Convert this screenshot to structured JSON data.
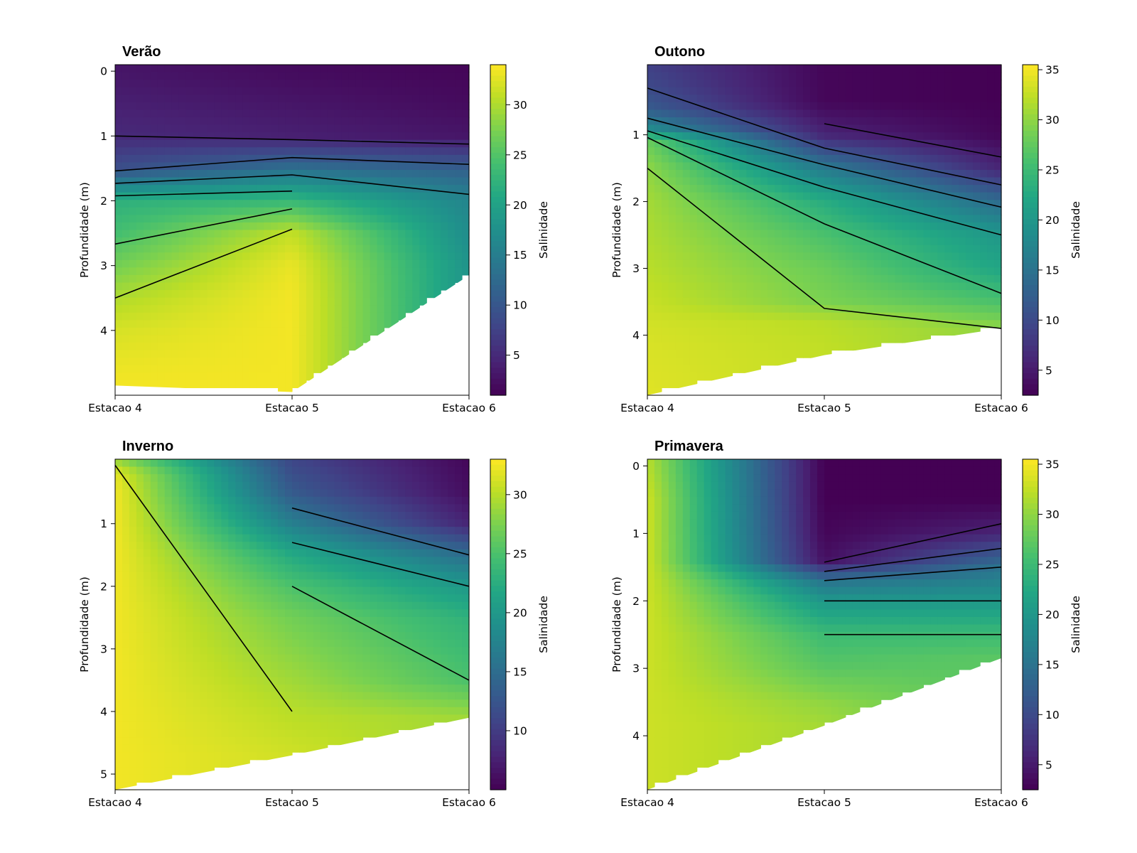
{
  "chart_data": [
    {
      "type": "heatmap",
      "title": "Verão",
      "xlabel": "",
      "ylabel": "Profundidade (m)",
      "x_tick_labels": [
        "Estacao 4",
        "Estacao 5",
        "Estacao 6"
      ],
      "ylim": [
        5.0,
        -0.1
      ],
      "y_ticks": [
        0,
        1,
        2,
        3,
        4
      ],
      "bottom_depth": [
        4.85,
        4.95,
        3.15
      ],
      "colorbar": {
        "label": "Salinidade",
        "min": 1.0,
        "max": 34.0,
        "ticks": [
          5,
          10,
          15,
          20,
          25,
          30
        ],
        "colormap": "viridis"
      },
      "salinity_profiles": [
        {
          "station": "Estacao 4",
          "depth": [
            0,
            0.5,
            1.0,
            1.5,
            2.0,
            2.5,
            3.0,
            3.5,
            4.0,
            4.5,
            4.85
          ],
          "salinity": [
            3,
            4,
            5,
            9,
            22,
            24,
            27,
            30,
            32,
            33,
            33.5
          ]
        },
        {
          "station": "Estacao 5",
          "depth": [
            0,
            0.5,
            1.0,
            1.5,
            2.0,
            2.5,
            3.0,
            3.5,
            4.0,
            4.5,
            4.95
          ],
          "salinity": [
            2,
            3,
            4,
            13,
            23,
            31,
            33,
            33.5,
            33.5,
            33.5,
            33.5
          ]
        },
        {
          "station": "Estacao 6",
          "depth": [
            0,
            0.5,
            1.0,
            1.5,
            2.0,
            2.5,
            3.0,
            3.15
          ],
          "salinity": [
            1.5,
            2,
            3,
            11,
            16,
            17,
            18,
            18
          ]
        }
      ]
    },
    {
      "type": "heatmap",
      "title": "Outono",
      "xlabel": "",
      "ylabel": "Profundidade (m)",
      "x_tick_labels": [
        "Estacao 4",
        "Estacao 5",
        "Estacao 6"
      ],
      "ylim": [
        4.9,
        -0.05
      ],
      "y_ticks": [
        1,
        2,
        3,
        4
      ],
      "bottom_depth": [
        4.9,
        4.3,
        3.9
      ],
      "colorbar": {
        "label": "Salinidade",
        "min": 2.5,
        "max": 35.5,
        "ticks": [
          5,
          10,
          15,
          20,
          25,
          30,
          35
        ],
        "colormap": "viridis"
      },
      "salinity_profiles": [
        {
          "station": "Estacao 4",
          "depth": [
            0,
            0.3,
            0.6,
            0.9,
            1.1,
            1.5,
            2.0,
            3.0,
            4.0,
            4.9
          ],
          "salinity": [
            9,
            10,
            12,
            18,
            28,
            30,
            31,
            32,
            33.5,
            34
          ]
        },
        {
          "station": "Estacao 5",
          "depth": [
            0,
            0.5,
            1.0,
            1.5,
            2.0,
            2.5,
            3.0,
            3.5,
            3.8,
            4.3
          ],
          "salinity": [
            3,
            3,
            6,
            16,
            23,
            26,
            28,
            29,
            32,
            32.5
          ]
        },
        {
          "station": "Estacao 6",
          "depth": [
            0,
            0.5,
            1.0,
            1.5,
            2.0,
            2.5,
            3.0,
            3.5,
            3.9
          ],
          "salinity": [
            2.5,
            2.5,
            3,
            6,
            14,
            20,
            22,
            26,
            30
          ]
        }
      ]
    },
    {
      "type": "heatmap",
      "title": "Inverno",
      "xlabel": "",
      "ylabel": "Profundidade (m)",
      "x_tick_labels": [
        "Estacao 4",
        "Estacao 5",
        "Estacao 6"
      ],
      "ylim": [
        5.25,
        -0.03
      ],
      "y_ticks": [
        1,
        2,
        3,
        4,
        5
      ],
      "bottom_depth": [
        5.25,
        4.7,
        4.1
      ],
      "colorbar": {
        "label": "Salinidade",
        "min": 5.0,
        "max": 33.0,
        "ticks": [
          10,
          15,
          20,
          25,
          30
        ],
        "colormap": "viridis"
      },
      "salinity_profiles": [
        {
          "station": "Estacao 4",
          "depth": [
            0,
            0.2,
            0.5,
            1.0,
            2.0,
            3.0,
            4.0,
            5.25
          ],
          "salinity": [
            29,
            32,
            32.5,
            32.5,
            32.5,
            32.5,
            32.5,
            32.5
          ]
        },
        {
          "station": "Estacao 5",
          "depth": [
            0,
            0.5,
            1.0,
            1.5,
            2.0,
            2.5,
            3.0,
            3.5,
            4.0,
            4.7
          ],
          "salinity": [
            11,
            13,
            17,
            22,
            25,
            27,
            28,
            29,
            30,
            31
          ]
        },
        {
          "station": "Estacao 6",
          "depth": [
            0,
            0.5,
            1.0,
            1.5,
            2.0,
            2.5,
            3.0,
            3.5,
            4.1
          ],
          "salinity": [
            5.5,
            6,
            8,
            15,
            20,
            23,
            24,
            25,
            29
          ]
        }
      ]
    },
    {
      "type": "heatmap",
      "title": "Primavera",
      "xlabel": "",
      "ylabel": "Profundidade (m)",
      "x_tick_labels": [
        "Estacao 4",
        "Estacao 5",
        "Estacao 6"
      ],
      "ylim": [
        4.8,
        -0.1
      ],
      "y_ticks": [
        0,
        1,
        2,
        3,
        4
      ],
      "bottom_depth": [
        4.8,
        3.85,
        2.85
      ],
      "colorbar": {
        "label": "Salinidade",
        "min": 2.5,
        "max": 35.5,
        "ticks": [
          5,
          10,
          15,
          20,
          25,
          30,
          35
        ],
        "colormap": "viridis"
      },
      "salinity_profiles": [
        {
          "station": "Estacao 4",
          "depth": [
            0,
            0.5,
            1.0,
            2.0,
            3.0,
            4.0,
            4.8
          ],
          "salinity": [
            32,
            33,
            33,
            33,
            33,
            33,
            33
          ]
        },
        {
          "station": "Estacao 5",
          "depth": [
            0,
            0.5,
            1.0,
            1.4,
            1.7,
            2.0,
            2.5,
            3.0,
            3.5,
            3.85
          ],
          "salinity": [
            2.5,
            2.5,
            3,
            4,
            15,
            20,
            25,
            27,
            30,
            31
          ]
        },
        {
          "station": "Estacao 6",
          "depth": [
            0,
            0.5,
            1.0,
            1.5,
            2.0,
            2.5,
            2.85
          ],
          "salinity": [
            2.5,
            2.5,
            6,
            15,
            20,
            25,
            27
          ]
        }
      ]
    }
  ]
}
